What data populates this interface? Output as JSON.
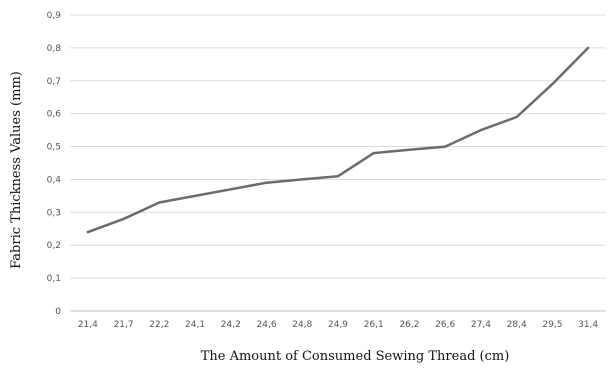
{
  "chart_data": {
    "type": "line",
    "title": "",
    "xlabel": "The Amount of Consumed Sewing Thread (cm)",
    "ylabel": "Fabric Thickness Values (mm)",
    "categories": [
      "21,4",
      "21,7",
      "22,2",
      "24,1",
      "24,2",
      "24,6",
      "24,8",
      "24,9",
      "26,1",
      "26,2",
      "26,6",
      "27,4",
      "28,4",
      "29,5",
      "31,4"
    ],
    "yticks": [
      "0",
      "0,1",
      "0,2",
      "0,3",
      "0,4",
      "0,5",
      "0,6",
      "0,7",
      "0,8",
      "0,9"
    ],
    "series": [
      {
        "values": [
          0.24,
          0.28,
          0.33,
          0.35,
          0.37,
          0.39,
          0.4,
          0.41,
          0.48,
          0.49,
          0.5,
          0.55,
          0.59,
          0.69,
          0.8
        ]
      }
    ],
    "ylim": [
      0,
      0.9
    ],
    "grid": true,
    "legend": "none",
    "line_color": "#6b6b6b",
    "grid_color": "#dcdcdc"
  }
}
